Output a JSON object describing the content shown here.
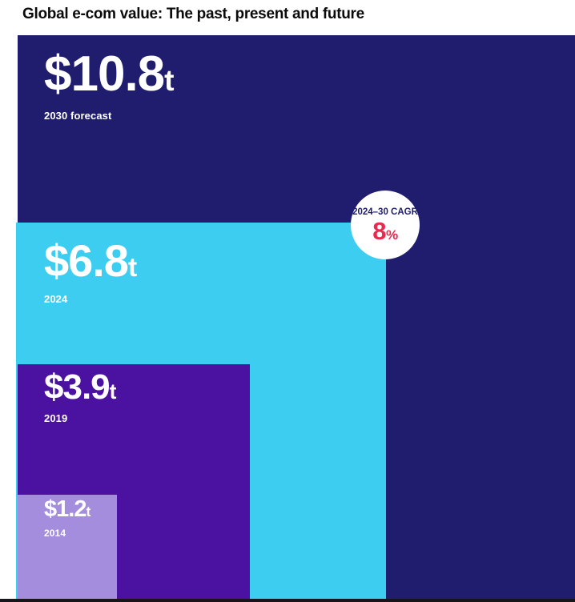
{
  "title": "Global e-com value: The past, present and future",
  "chart_data": {
    "type": "area",
    "subtype": "nested-proportional-squares",
    "title": "Global e-com value: The past, present and future",
    "categories": [
      "2014",
      "2019",
      "2024",
      "2030 forecast"
    ],
    "values": [
      1.2,
      3.9,
      6.8,
      10.8
    ],
    "value_labels": [
      "$1.2t",
      "$3.9t",
      "$6.8t",
      "$10.8t"
    ],
    "unit": "USD trillions",
    "legend": "none",
    "annotations": [
      {
        "label": "2024–30 CAGR",
        "value": "8%"
      }
    ]
  },
  "squares": [
    {
      "amount": "$10.8",
      "suffix": "t",
      "year_label": "2030 forecast",
      "value_trillions": 10.8,
      "color": "#201d6e",
      "text_color": "#ffffff"
    },
    {
      "amount": "$6.8",
      "suffix": "t",
      "year_label": "2024",
      "value_trillions": 6.8,
      "color": "#3dcdf0",
      "text_color": "#ffffff"
    },
    {
      "amount": "$3.9",
      "suffix": "t",
      "year_label": "2019",
      "value_trillions": 3.9,
      "color": "#4b11a0",
      "text_color": "#ffffff"
    },
    {
      "amount": "$1.2",
      "suffix": "t",
      "year_label": "2014",
      "value_trillions": 1.2,
      "color": "#a38ddc",
      "text_color": "#ffffff"
    }
  ],
  "badge": {
    "label": "2024–30 CAGR",
    "value": "8",
    "unit": "%",
    "label_color": "#201d6e",
    "value_color": "#e9294f",
    "background": "#ffffff"
  },
  "decor": {
    "bottom_bar_color": "#17141c"
  }
}
